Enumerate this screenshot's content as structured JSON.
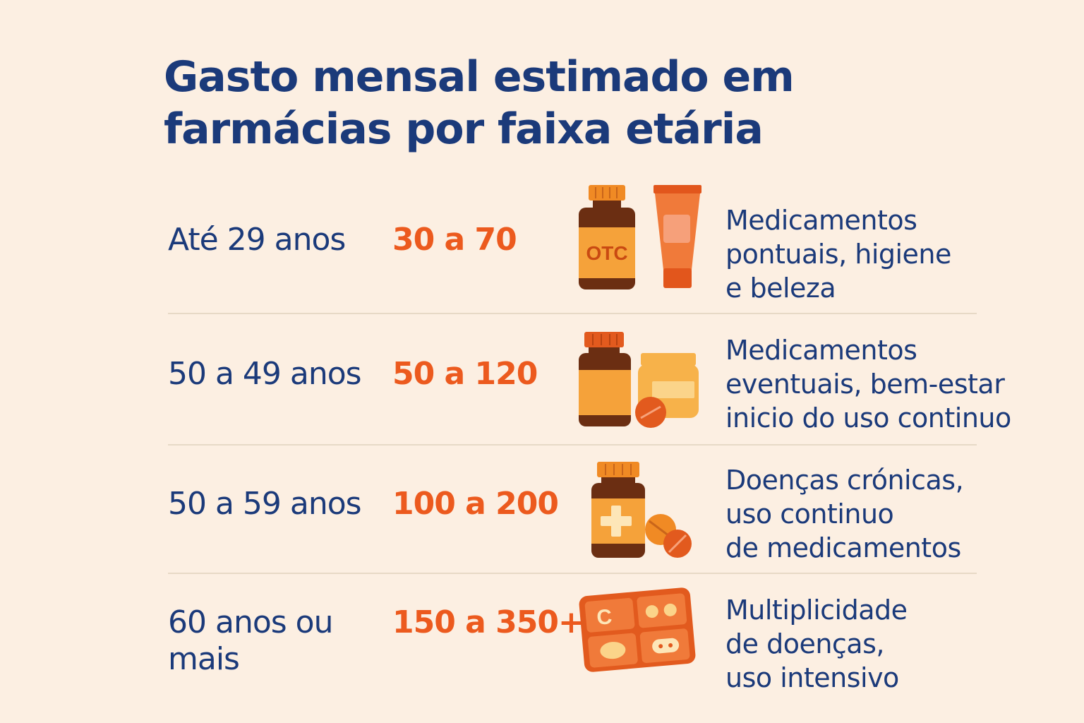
{
  "title": "Gasto mensal estimado em farmácias por faixa etária",
  "colors": {
    "navy": "#1b3a7a",
    "orange": "#ec5a1e",
    "background": "#fcefe2"
  },
  "rows": [
    {
      "age": "Até 29 anos",
      "value": "30 a 70",
      "description": "Medicamentos\npontuais, higiene\ne beleza",
      "icons": [
        "otc-bottle-icon",
        "cream-tube-icon"
      ],
      "bottle_label": "OTC"
    },
    {
      "age": "50 a 49 anos",
      "value": "50 a 120",
      "description": "Medicamentos\neventuais, bem-estar\ninicio do uso continuo",
      "icons": [
        "pill-bottle-icon",
        "jar-icon",
        "tablet-icon"
      ]
    },
    {
      "age": "50 a 59 anos",
      "value": "100 a 200",
      "description": "Doenças crónicas,\nuso continuo\nde medicamentos",
      "icons": [
        "medicine-bottle-cross-icon",
        "tablets-icon"
      ]
    },
    {
      "age": "60 anos ou\nmais",
      "value": "150 a 350+",
      "description": "Multiplicidade\nde doenças,\nuso intensivo",
      "icons": [
        "pill-organizer-icon"
      ],
      "organizer_letter": "C"
    }
  ]
}
